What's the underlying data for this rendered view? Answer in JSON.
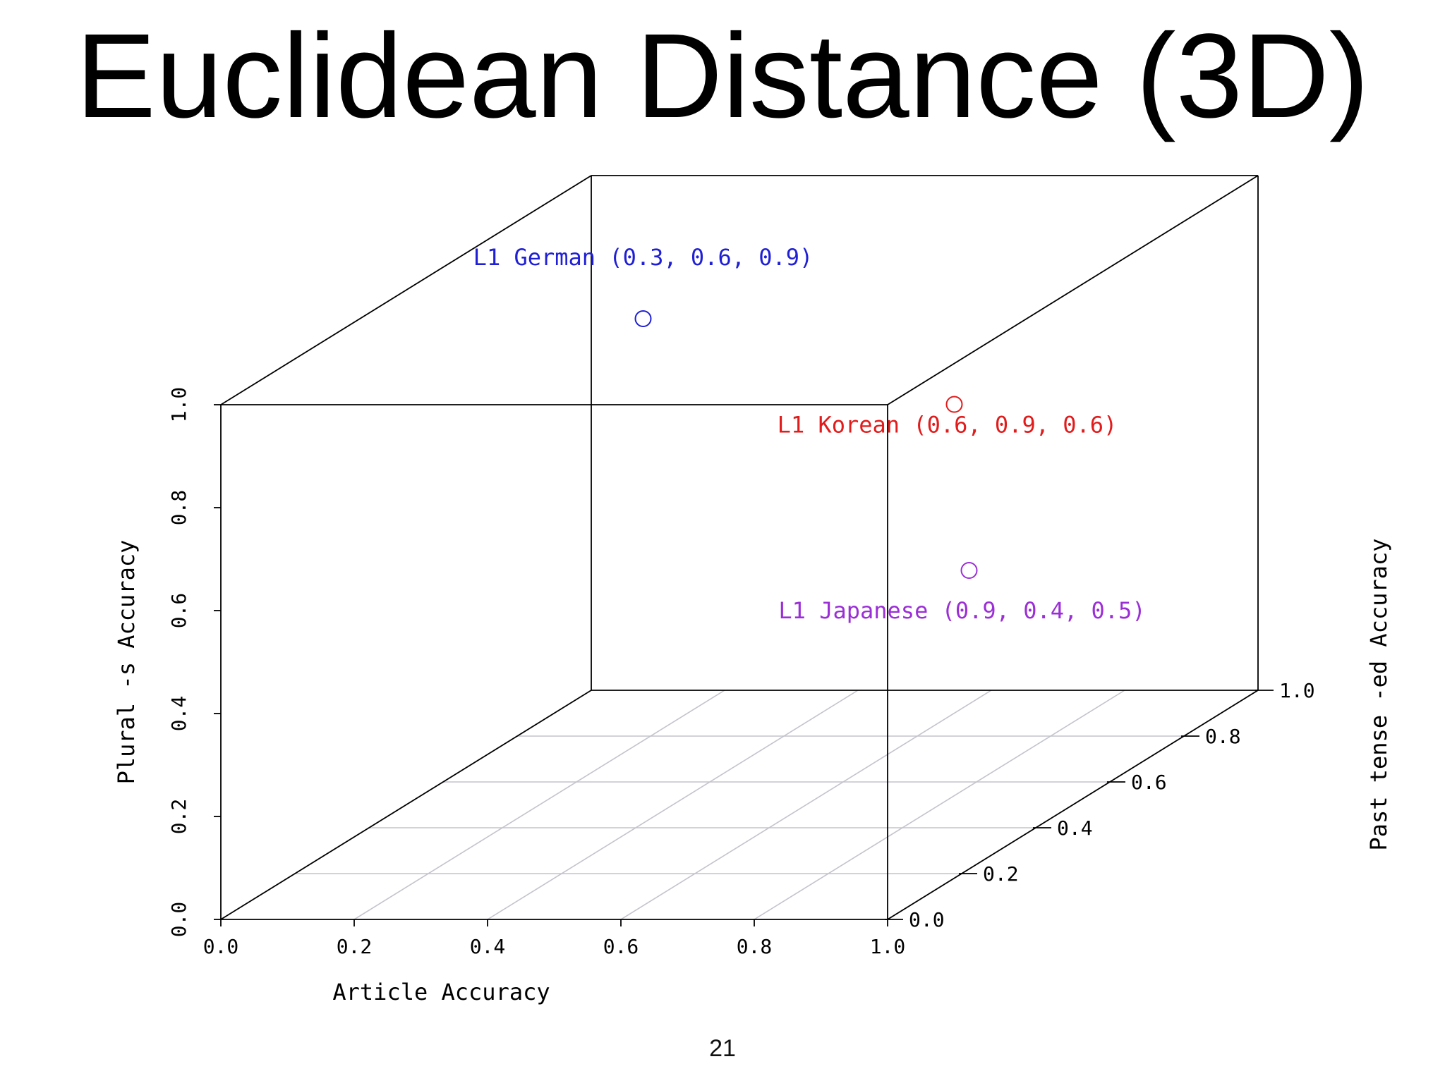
{
  "slide": {
    "title": "Euclidean Distance (3D)",
    "page_number": "21"
  },
  "chart_data": {
    "type": "scatter",
    "dimensions": 3,
    "x_axis": {
      "label": "Article Accuracy",
      "range": [
        0,
        1
      ],
      "ticks": [
        "0.0",
        "0.2",
        "0.4",
        "0.6",
        "0.8",
        "1.0"
      ]
    },
    "y_axis": {
      "label": "Past tense -ed Accuracy",
      "range": [
        0,
        1
      ],
      "ticks": [
        "0.0",
        "0.2",
        "0.4",
        "0.6",
        "0.8",
        "1.0"
      ]
    },
    "z_axis": {
      "label": "Plural -s Accuracy",
      "range": [
        0,
        1
      ],
      "ticks": [
        "0.0",
        "0.2",
        "0.4",
        "0.6",
        "0.8",
        "1.0"
      ]
    },
    "grid": "floor",
    "points": [
      {
        "label": "L1 German (0.3, 0.6, 0.9)",
        "x": 0.3,
        "y": 0.6,
        "z": 0.9,
        "color": "#1f1fd6"
      },
      {
        "label": "L1 Korean (0.6, 0.9, 0.6)",
        "x": 0.6,
        "y": 0.9,
        "z": 0.6,
        "color": "#e21b1b"
      },
      {
        "label": "L1 Japanese (0.9, 0.4, 0.5)",
        "x": 0.9,
        "y": 0.4,
        "z": 0.5,
        "color": "#9b2fd6"
      }
    ],
    "colors": {
      "axes": "#000000",
      "grid": "#c3c3cc"
    }
  }
}
